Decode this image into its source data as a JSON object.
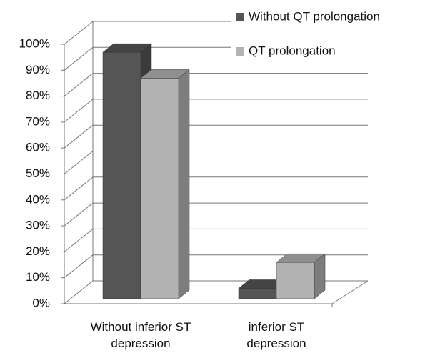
{
  "chart_data": {
    "type": "bar3d",
    "categories": [
      "Without inferior ST depression",
      "inferior ST depression"
    ],
    "series": [
      {
        "name": "Without QT prolongation",
        "color": "#555555",
        "values": [
          95,
          4
        ]
      },
      {
        "name": "QT prolongation",
        "color": "#b3b3b3",
        "values": [
          85,
          14
        ]
      }
    ],
    "ylim": [
      0,
      100
    ],
    "yticks": [
      {
        "value": 0,
        "label": "0%"
      },
      {
        "value": 10,
        "label": "10%"
      },
      {
        "value": 20,
        "label": "20%"
      },
      {
        "value": 30,
        "label": "30%"
      },
      {
        "value": 40,
        "label": "40%"
      },
      {
        "value": 50,
        "label": "50%"
      },
      {
        "value": 60,
        "label": "60%"
      },
      {
        "value": 70,
        "label": "70%"
      },
      {
        "value": 80,
        "label": "80%"
      },
      {
        "value": 90,
        "label": "90%"
      },
      {
        "value": 100,
        "label": "100%"
      }
    ],
    "grid": true,
    "legend": "top right"
  }
}
